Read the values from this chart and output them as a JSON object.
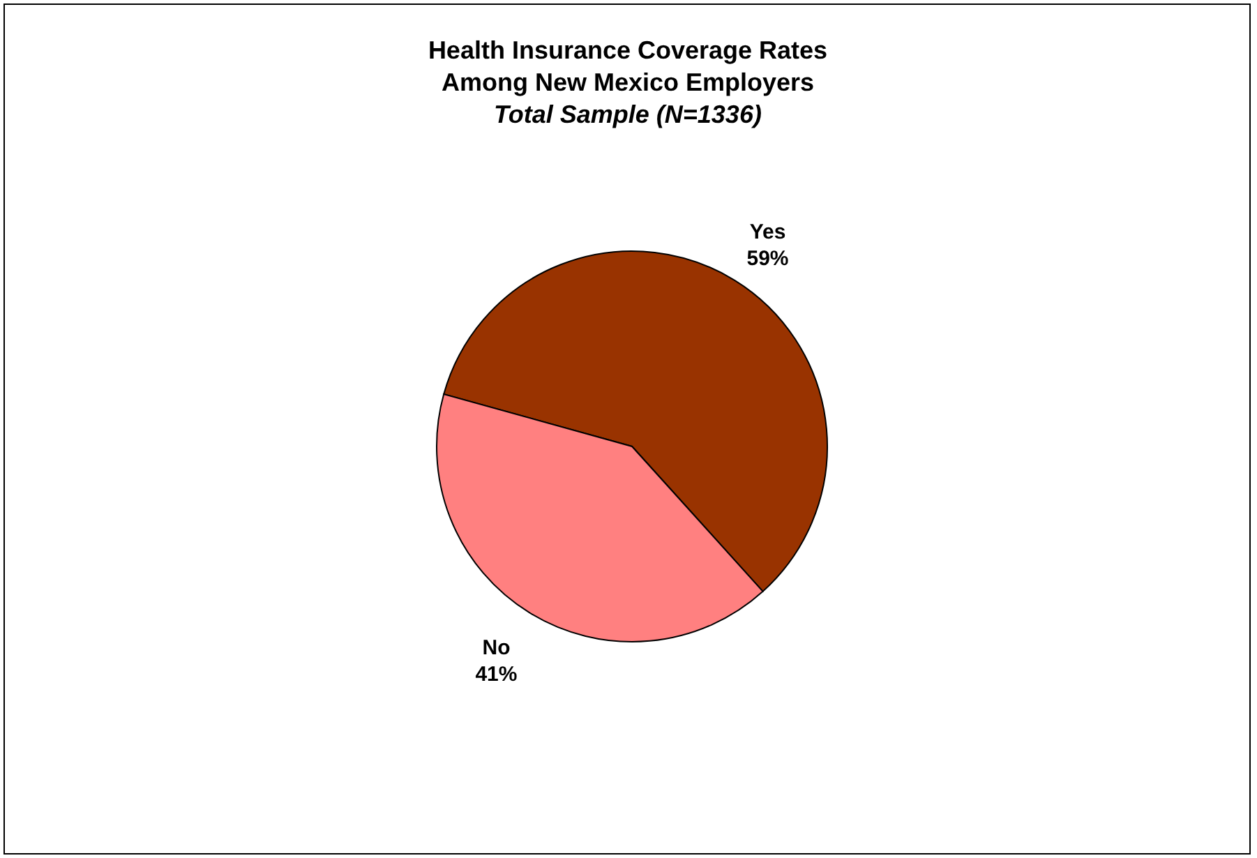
{
  "chart_data": {
    "type": "pie",
    "title": "Health Insurance Coverage Rates\nAmong New Mexico Employers",
    "subtitle": "Total Sample (N=1336)",
    "categories": [
      "Yes",
      "No"
    ],
    "values": [
      59,
      41
    ],
    "colors": [
      "#993300",
      "#ff8080"
    ],
    "value_labels": [
      "59%",
      "41%"
    ]
  }
}
